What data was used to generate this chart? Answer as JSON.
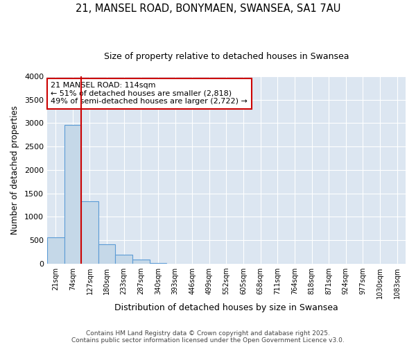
{
  "title_line1": "21, MANSEL ROAD, BONYMAEN, SWANSEA, SA1 7AU",
  "title_line2": "Size of property relative to detached houses in Swansea",
  "xlabel": "Distribution of detached houses by size in Swansea",
  "ylabel": "Number of detached properties",
  "footnote1": "Contains HM Land Registry data © Crown copyright and database right 2025.",
  "footnote2": "Contains public sector information licensed under the Open Government Licence v3.0.",
  "categories": [
    "21sqm",
    "74sqm",
    "127sqm",
    "180sqm",
    "233sqm",
    "287sqm",
    "340sqm",
    "393sqm",
    "446sqm",
    "499sqm",
    "552sqm",
    "605sqm",
    "658sqm",
    "711sqm",
    "764sqm",
    "818sqm",
    "871sqm",
    "924sqm",
    "977sqm",
    "1030sqm",
    "1083sqm"
  ],
  "values": [
    560,
    2970,
    1340,
    420,
    185,
    90,
    20,
    5,
    0,
    0,
    0,
    0,
    0,
    0,
    0,
    0,
    0,
    0,
    0,
    0,
    0
  ],
  "bar_color": "#c5d8e8",
  "bar_edge_color": "#5b9bd5",
  "plot_bg_color": "#dce6f1",
  "fig_bg_color": "#ffffff",
  "grid_color": "#ffffff",
  "vline_color": "#cc0000",
  "vline_pos": 1.5,
  "annotation_text": "21 MANSEL ROAD: 114sqm\n← 51% of detached houses are smaller (2,818)\n49% of semi-detached houses are larger (2,722) →",
  "annotation_box_color": "#cc0000",
  "annotation_bg": "#ffffff",
  "ylim": [
    0,
    4000
  ],
  "yticks": [
    0,
    500,
    1000,
    1500,
    2000,
    2500,
    3000,
    3500,
    4000
  ]
}
